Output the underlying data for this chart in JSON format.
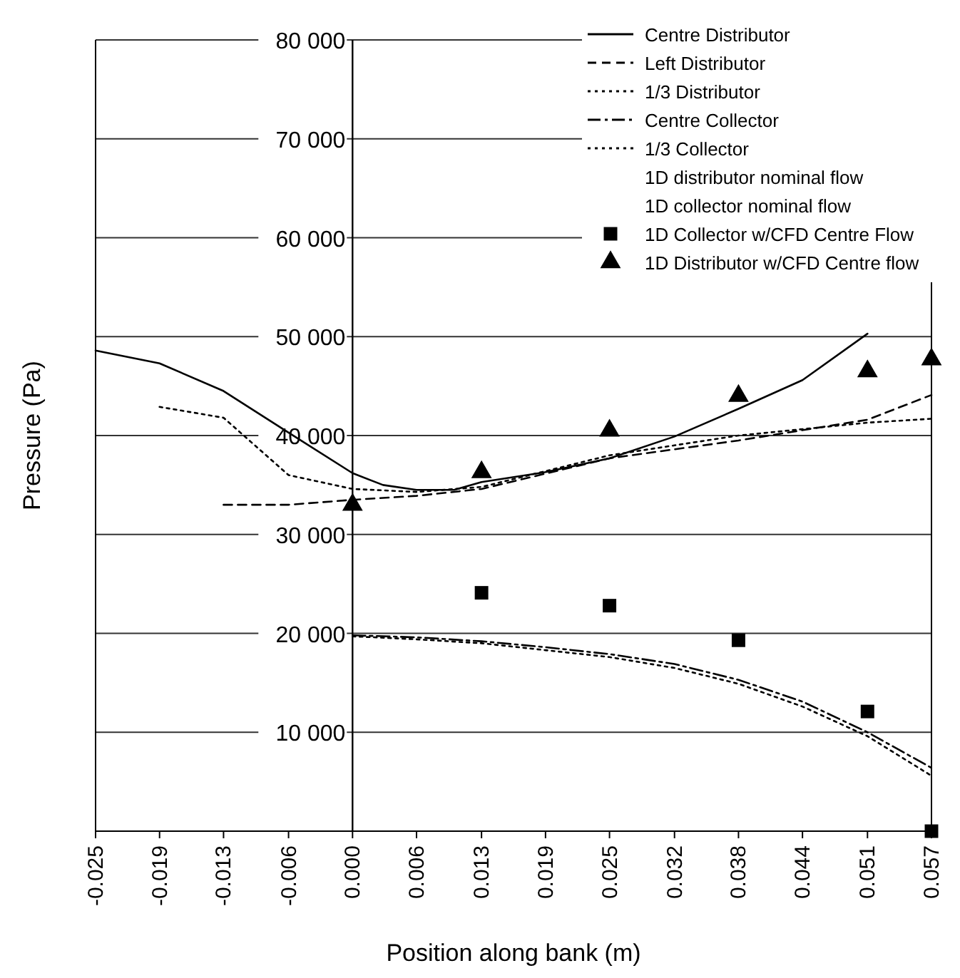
{
  "chart_data": {
    "type": "line",
    "xlabel": "Position along bank (m)",
    "ylabel": "Pressure (Pa)",
    "xlim": [
      -0.0253,
      0.057
    ],
    "ylim": [
      0,
      80000
    ],
    "xticks": [
      {
        "value": -0.0253,
        "label": "-0.025"
      },
      {
        "value": -0.019,
        "label": "-0.019"
      },
      {
        "value": -0.0127,
        "label": "-0.013"
      },
      {
        "value": -0.0063,
        "label": "-0.006"
      },
      {
        "value": 0,
        "label": "0.000"
      },
      {
        "value": 0.0063,
        "label": "0.006"
      },
      {
        "value": 0.0127,
        "label": "0.013"
      },
      {
        "value": 0.019,
        "label": "0.019"
      },
      {
        "value": 0.0253,
        "label": "0.025"
      },
      {
        "value": 0.0317,
        "label": "0.032"
      },
      {
        "value": 0.038,
        "label": "0.038"
      },
      {
        "value": 0.0443,
        "label": "0.044"
      },
      {
        "value": 0.0507,
        "label": "0.051"
      },
      {
        "value": 0.057,
        "label": "0.057"
      }
    ],
    "yticks": [
      {
        "value": 10000,
        "label": "10 000"
      },
      {
        "value": 20000,
        "label": "20 000"
      },
      {
        "value": 30000,
        "label": "30 000"
      },
      {
        "value": 40000,
        "label": "40 000"
      },
      {
        "value": 50000,
        "label": "50 000"
      },
      {
        "value": 60000,
        "label": "60 000"
      },
      {
        "value": 70000,
        "label": "70 000"
      },
      {
        "value": 80000,
        "label": "80 000"
      }
    ],
    "grid": "y",
    "legend": "top right",
    "series": [
      {
        "name": "Centre Distributor",
        "line_style": "solid",
        "color": "#000000",
        "x": [
          -0.0253,
          -0.019,
          -0.0127,
          -0.0063,
          0,
          0.003,
          0.0063,
          0.01,
          0.0127,
          0.019,
          0.0253,
          0.0317,
          0.038,
          0.0443,
          0.0507
        ],
        "values": [
          48600,
          47300,
          44500,
          40300,
          36200,
          35000,
          34500,
          34500,
          35300,
          36300,
          37700,
          39900,
          42700,
          45600,
          50300
        ]
      },
      {
        "name": "Left Distributor",
        "line_style": "dashed",
        "color": "#000000",
        "x": [
          -0.0127,
          -0.0063,
          0,
          0.0063,
          0.0127,
          0.0253,
          0.038,
          0.0507,
          0.057
        ],
        "values": [
          33000,
          33000,
          33500,
          33900,
          34600,
          37700,
          39500,
          41600,
          44100
        ]
      },
      {
        "name": "1/3 Distributor",
        "line_style": "dotted",
        "color": "#000000",
        "x": [
          -0.019,
          -0.0127,
          -0.0063,
          0,
          0.0063,
          0.0127,
          0.0253,
          0.038,
          0.0507,
          0.057
        ],
        "values": [
          42900,
          41800,
          36000,
          34600,
          34300,
          34800,
          38000,
          40000,
          41300,
          41700
        ]
      },
      {
        "name": "Centre Collector",
        "line_style": "dashdot",
        "color": "#000000",
        "x": [
          0,
          0.0063,
          0.0127,
          0.019,
          0.0253,
          0.0317,
          0.038,
          0.0443,
          0.0507,
          0.057
        ],
        "values": [
          19800,
          19600,
          19200,
          18600,
          17900,
          16900,
          15300,
          13100,
          10000,
          6400
        ]
      },
      {
        "name": "1/3 Collector",
        "line_style": "dotted",
        "color": "#000000",
        "x": [
          0,
          0.0063,
          0.0127,
          0.019,
          0.0253,
          0.0317,
          0.038,
          0.0443,
          0.0507,
          0.057
        ],
        "values": [
          19700,
          19400,
          19000,
          18300,
          17600,
          16500,
          14900,
          12600,
          9600,
          5600
        ]
      },
      {
        "name": "1D distributor nominal flow"
      },
      {
        "name": "1D collector nominal flow"
      },
      {
        "name": "1D Collector w/CFD Centre Flow",
        "type": "scatter",
        "marker": "square",
        "color": "#000000",
        "x": [
          0.0127,
          0.0253,
          0.038,
          0.0507,
          0.057
        ],
        "values": [
          24100,
          22800,
          19300,
          12100,
          0
        ]
      },
      {
        "name": "1D Distributor w/CFD Centre flow",
        "type": "scatter",
        "marker": "triangle",
        "color": "#000000",
        "x": [
          0,
          0.0127,
          0.0253,
          0.038,
          0.0507,
          0.057
        ],
        "values": [
          33000,
          36300,
          40500,
          44000,
          46500,
          47700
        ]
      }
    ]
  }
}
